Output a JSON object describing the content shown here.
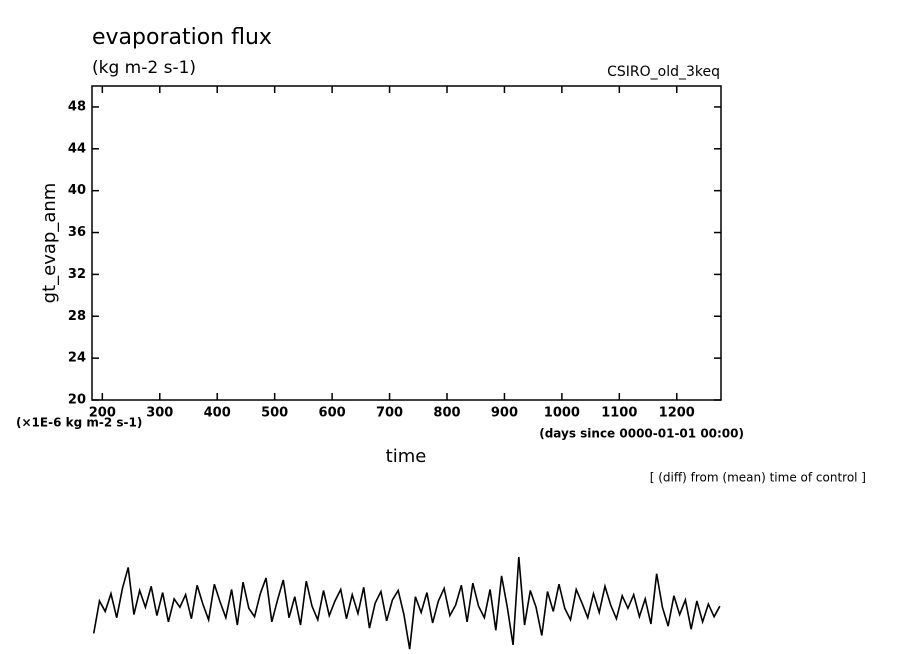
{
  "chart_data": {
    "type": "line",
    "title": "evaporation flux",
    "subtitle": "(kg m-2 s-1)",
    "experiment": "CSIRO_old_3keq",
    "y_label": "gt_evap_anm",
    "x_label": "time",
    "y_unit_note": "(×1E-6 kg m-2 s-1)",
    "x_unit_note": "(days since 0000-01-01 00:00)",
    "note": "[ (diff) from (mean) time of control ]",
    "color": "#000000",
    "xlim": [
      182,
      1277
    ],
    "ylim": [
      20,
      50
    ],
    "xticks": [
      200,
      300,
      400,
      500,
      600,
      700,
      800,
      900,
      1000,
      1100,
      1200
    ],
    "yticks": [
      20,
      24,
      28,
      32,
      36,
      40,
      44,
      48
    ],
    "x": [
      185,
      195,
      205,
      215,
      225,
      235,
      245,
      255,
      265,
      275,
      285,
      295,
      305,
      315,
      325,
      335,
      345,
      355,
      365,
      375,
      385,
      395,
      405,
      415,
      425,
      435,
      445,
      455,
      465,
      475,
      485,
      495,
      505,
      515,
      525,
      535,
      545,
      555,
      565,
      575,
      585,
      595,
      605,
      615,
      625,
      635,
      645,
      655,
      665,
      675,
      685,
      695,
      705,
      715,
      725,
      735,
      745,
      755,
      765,
      775,
      785,
      795,
      805,
      815,
      825,
      835,
      845,
      855,
      865,
      875,
      885,
      895,
      905,
      915,
      925,
      935,
      945,
      955,
      965,
      975,
      985,
      995,
      1005,
      1015,
      1025,
      1035,
      1045,
      1055,
      1065,
      1075,
      1085,
      1095,
      1105,
      1115,
      1125,
      1135,
      1145,
      1155,
      1165,
      1175,
      1185,
      1195,
      1205,
      1215,
      1225,
      1235,
      1245,
      1255,
      1265,
      1275
    ],
    "values": [
      -2.3,
      0.8,
      -0.2,
      1.5,
      -0.8,
      2.0,
      4.0,
      -0.5,
      1.8,
      0.2,
      2.2,
      -0.6,
      1.6,
      -1.2,
      1.0,
      0.2,
      1.4,
      -0.9,
      2.3,
      0.5,
      -1.0,
      2.4,
      0.7,
      -0.8,
      1.9,
      -1.5,
      2.6,
      0.1,
      -0.7,
      1.5,
      3.0,
      -1.2,
      0.9,
      2.8,
      -0.8,
      1.2,
      -1.5,
      2.7,
      0.3,
      -1.0,
      1.8,
      -0.6,
      0.8,
      1.9,
      -0.9,
      1.4,
      -0.4,
      2.1,
      -1.8,
      0.6,
      1.7,
      -1.1,
      0.9,
      1.8,
      -0.5,
      -3.8,
      1.2,
      -0.3,
      1.6,
      -1.3,
      0.8,
      2.0,
      -0.6,
      0.4,
      2.3,
      -1.2,
      2.5,
      0.3,
      -0.8,
      1.9,
      -2.0,
      3.2,
      0.2,
      -3.4,
      5.0,
      -1.5,
      1.8,
      0.2,
      -2.5,
      1.7,
      -0.2,
      2.4,
      0.1,
      -1.0,
      1.9,
      0.6,
      -0.8,
      1.5,
      -0.3,
      2.2,
      0.4,
      -0.9,
      1.3,
      0.1,
      1.4,
      -0.7,
      1.0,
      -1.4,
      3.4,
      0.2,
      -1.6,
      1.3,
      -0.5,
      0.9,
      -1.9,
      0.8,
      -1.2,
      0.5,
      -0.7,
      0.3
    ]
  }
}
